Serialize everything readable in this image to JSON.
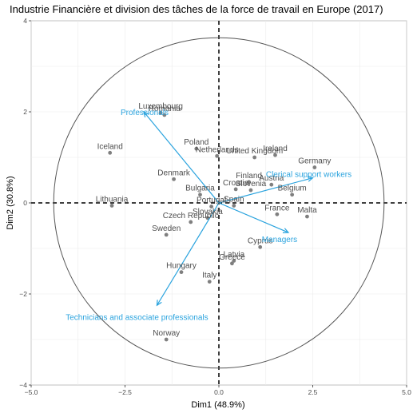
{
  "chart_data": {
    "type": "scatter",
    "title": "Industrie Financière et division des tâches de la force de travail en Europe (2017)",
    "xlabel": "Dim1 (48.9%)",
    "ylabel": "Dim2 (30.8%)",
    "xlim": [
      -5.0,
      5.0
    ],
    "ylim": [
      -4.0,
      4.0
    ],
    "xticks": [
      -5.0,
      -2.5,
      0.0,
      2.5,
      5.0
    ],
    "xtick_labels": [
      "−5.0",
      "−2.5",
      "0.0",
      "2.5",
      "5.0"
    ],
    "yticks": [
      -4,
      -2,
      0,
      2,
      4
    ],
    "ytick_labels": [
      "−4",
      "−2",
      "0",
      "2",
      "4"
    ],
    "grid": true,
    "circle_radius": 4.4,
    "colors": {
      "points": "#7f7f7f",
      "variables": "#2aa3de",
      "circle": "#555555"
    },
    "individuals": [
      {
        "name": "Luxembourg",
        "x": -1.55,
        "y": 1.98
      },
      {
        "name": "Romania",
        "x": -1.45,
        "y": 1.93
      },
      {
        "name": "Poland",
        "x": -0.6,
        "y": 1.19
      },
      {
        "name": "Iceland",
        "x": -2.9,
        "y": 1.1
      },
      {
        "name": "Netherlands",
        "x": -0.05,
        "y": 1.03
      },
      {
        "name": "Ireland",
        "x": 1.5,
        "y": 1.05
      },
      {
        "name": "Germany",
        "x": 2.55,
        "y": 0.78
      },
      {
        "name": "United Kingdom",
        "x": 0.95,
        "y": 1.0
      },
      {
        "name": "Denmark",
        "x": -1.2,
        "y": 0.52
      },
      {
        "name": "Finland",
        "x": 0.8,
        "y": 0.46
      },
      {
        "name": "Austria",
        "x": 1.4,
        "y": 0.4
      },
      {
        "name": "Croatia",
        "x": 0.45,
        "y": 0.3
      },
      {
        "name": "Slovenia",
        "x": 0.85,
        "y": 0.28
      },
      {
        "name": "Bulgaria",
        "x": -0.5,
        "y": 0.18
      },
      {
        "name": "Belgium",
        "x": 1.95,
        "y": 0.18
      },
      {
        "name": "Lithuania",
        "x": -2.85,
        "y": -0.06
      },
      {
        "name": "Portugal",
        "x": -0.2,
        "y": -0.08
      },
      {
        "name": "Spain",
        "x": 0.4,
        "y": -0.06
      },
      {
        "name": "France",
        "x": 1.55,
        "y": -0.25
      },
      {
        "name": "Malta",
        "x": 2.35,
        "y": -0.3
      },
      {
        "name": "Czech Republic",
        "x": -0.75,
        "y": -0.42
      },
      {
        "name": "Slovakia",
        "x": -0.3,
        "y": -0.33
      },
      {
        "name": "Sweden",
        "x": -1.4,
        "y": -0.7
      },
      {
        "name": "Cyprus",
        "x": 1.1,
        "y": -0.97
      },
      {
        "name": "Latvia",
        "x": 0.4,
        "y": -1.27
      },
      {
        "name": "Greece",
        "x": 0.35,
        "y": -1.33
      },
      {
        "name": "Hungary",
        "x": -1.0,
        "y": -1.52
      },
      {
        "name": "Italy",
        "x": -0.25,
        "y": -1.73
      },
      {
        "name": "Norway",
        "x": -1.4,
        "y": -3.0
      }
    ],
    "variables": [
      {
        "name": "Professionals",
        "x": -2.0,
        "y": 2.0
      },
      {
        "name": "Clerical support workers",
        "x": 2.5,
        "y": 0.55
      },
      {
        "name": "Managers",
        "x": 1.85,
        "y": -0.65
      },
      {
        "name": "Technicians and associate professionals",
        "x": -1.65,
        "y": -2.25
      }
    ]
  }
}
